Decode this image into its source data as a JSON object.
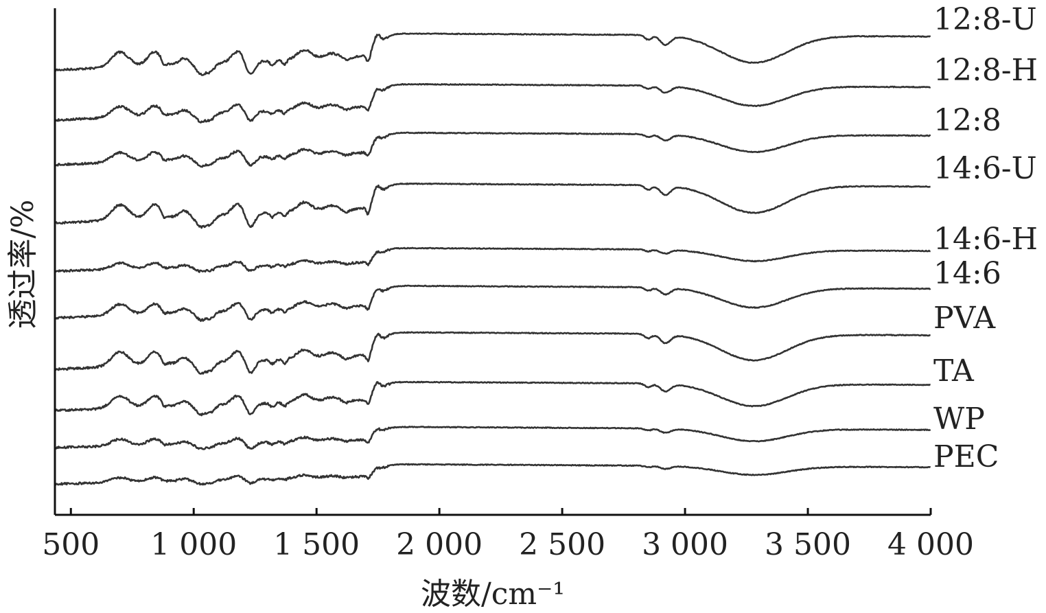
{
  "chart_data": {
    "type": "line",
    "title": "",
    "xlabel": "波数/cm⁻¹",
    "ylabel": "透过率/%",
    "xlim": [
      435,
      4000
    ],
    "x_ticks": [
      500,
      1000,
      1500,
      2000,
      2500,
      3000,
      3500,
      4000
    ],
    "x_tick_labels": [
      "500",
      "1 000",
      "1 500",
      "2 000",
      "2 500",
      "3 000",
      "3 500",
      "4 000"
    ],
    "y_ticks_shown": false,
    "grid": false,
    "legend": "labels at right end of each curve",
    "series": [
      {
        "name": "12:8-U",
        "base": 102,
        "end": 28,
        "scale": 1.1
      },
      {
        "name": "12:8-H",
        "base": 175,
        "end": 102,
        "scale": 0.8
      },
      {
        "name": "12:8",
        "base": 240,
        "end": 175,
        "scale": 0.7
      },
      {
        "name": "14:6-U",
        "base": 325,
        "end": 245,
        "scale": 1.1
      },
      {
        "name": "14:6-H",
        "base": 395,
        "end": 348,
        "scale": 0.45
      },
      {
        "name": "14:6",
        "base": 463,
        "end": 398,
        "scale": 0.8
      },
      {
        "name": "PVA",
        "base": 538,
        "end": 463,
        "scale": 1.05
      },
      {
        "name": "TA",
        "base": 598,
        "end": 540,
        "scale": 0.9
      },
      {
        "name": "WP",
        "base": 652,
        "end": 610,
        "scale": 0.5
      },
      {
        "name": "PEC",
        "base": 705,
        "end": 665,
        "scale": 0.35
      }
    ]
  }
}
